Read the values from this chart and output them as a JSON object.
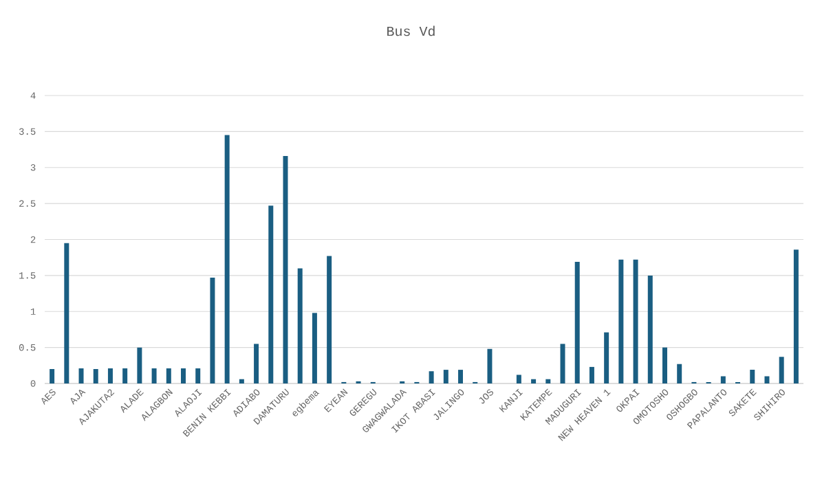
{
  "chart_data": {
    "type": "bar",
    "title": "Bus Vd",
    "categories": [
      "AES",
      null,
      "AJA",
      null,
      "AJAKUTA2",
      null,
      "ALADE",
      null,
      "ALAGBON",
      null,
      "ALAOJI",
      null,
      "BENIN KEBBI",
      null,
      "ADIABO",
      null,
      "DAMATURU",
      null,
      "egbema",
      null,
      "EYEAN",
      null,
      "GEREGU",
      null,
      "GWAGWALADA",
      null,
      "IKOT ABASI",
      null,
      "JALINGO",
      null,
      "JOS",
      null,
      "KANJI",
      null,
      "KATEMPE",
      null,
      "MADUGURI",
      null,
      "NEW HEAVEN 1",
      null,
      "OKPAI",
      null,
      "OMOTOSHO",
      null,
      "OSHOGBO",
      null,
      "PAPALANTO",
      null,
      "SAKETE",
      null,
      "SHIHIRO",
      null
    ],
    "values": [
      0.2,
      1.95,
      0.21,
      0.2,
      0.21,
      0.21,
      0.5,
      0.21,
      0.21,
      0.21,
      0.21,
      1.47,
      3.45,
      0.06,
      0.55,
      2.47,
      3.16,
      1.6,
      0.98,
      1.77,
      0.02,
      0.03,
      0.02,
      0,
      0.03,
      0.02,
      0.17,
      0.19,
      0.19,
      0.02,
      0.48,
      0,
      0.12,
      0.06,
      0.06,
      0.55,
      1.69,
      0.23,
      0.71,
      1.72,
      1.72,
      1.5,
      0.5,
      0.27,
      0.02,
      0.02,
      0.1,
      0.02,
      0.19,
      0.1,
      0.37,
      1.86
    ],
    "color": "#1a5e82",
    "ylim": [
      0,
      4
    ],
    "yticks": [
      0,
      0.5,
      1,
      1.5,
      2,
      2.5,
      3,
      3.5,
      4
    ],
    "grid": "y"
  }
}
